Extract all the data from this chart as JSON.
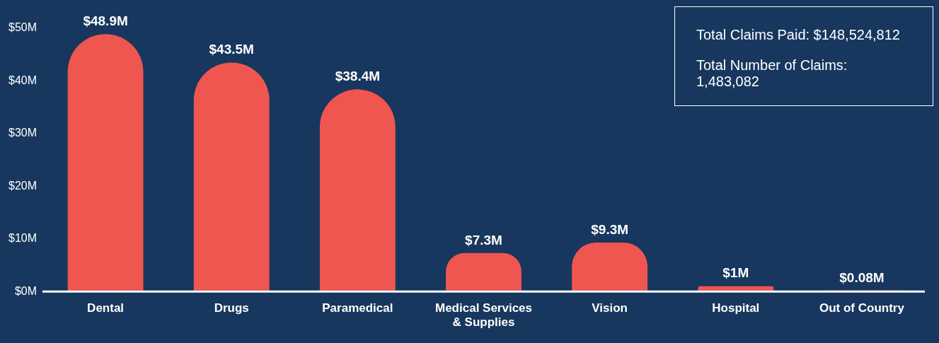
{
  "chart_data": {
    "type": "bar",
    "categories": [
      "Dental",
      "Drugs",
      "Paramedical",
      "Medical Services\n& Supplies",
      "Vision",
      "Hospital",
      "Out of Country"
    ],
    "values": [
      48.9,
      43.5,
      38.4,
      7.3,
      9.3,
      1,
      0.08
    ],
    "value_labels": [
      "$48.9M",
      "$43.5M",
      "$38.4M",
      "$7.3M",
      "$9.3M",
      "$1M",
      "$0.08M"
    ],
    "color": "#ef5650",
    "ylim": [
      0,
      50
    ],
    "yticks": [
      {
        "value": 0,
        "label": "$0M"
      },
      {
        "value": 10,
        "label": "$10M"
      },
      {
        "value": 20,
        "label": "$20M"
      },
      {
        "value": 30,
        "label": "$30M"
      },
      {
        "value": 40,
        "label": "$40M"
      },
      {
        "value": 50,
        "label": "$50M"
      }
    ],
    "grid": false,
    "legend": false,
    "annotations": [
      "Total Claims Paid: $148,524,812",
      "Total Number of Claims: 1,483,082"
    ]
  }
}
